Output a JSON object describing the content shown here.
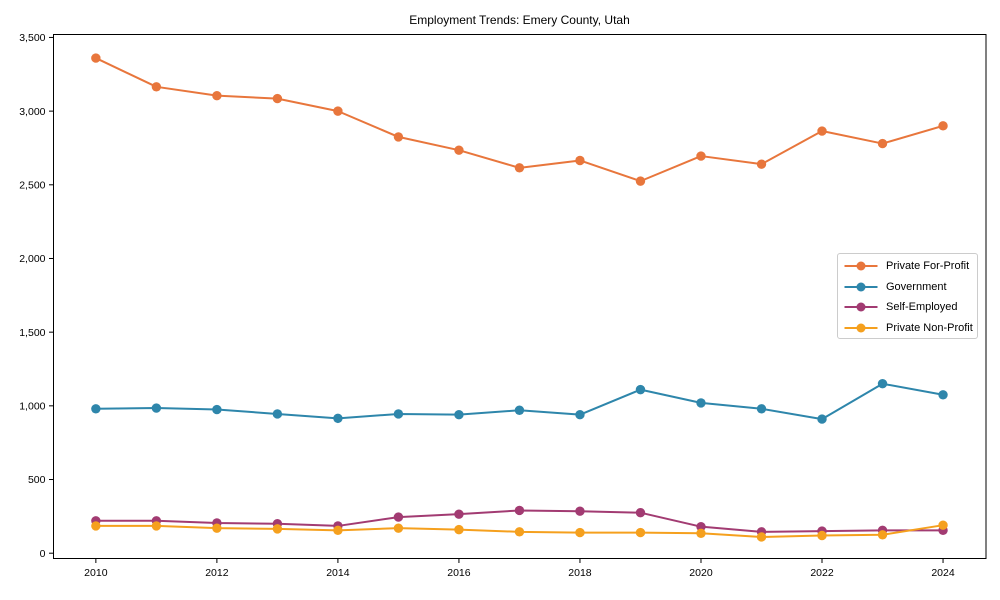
{
  "page": {
    "background": "#ffffff"
  },
  "chart_data": {
    "type": "line",
    "title": "Employment Trends: Emery County, Utah",
    "xlabel": "",
    "ylabel": "",
    "x": [
      2010,
      2011,
      2012,
      2013,
      2014,
      2015,
      2016,
      2017,
      2018,
      2019,
      2020,
      2021,
      2022,
      2023,
      2024
    ],
    "series": [
      {
        "name": "Private For-Profit",
        "color": "#E8763C",
        "values": [
          3360,
          3165,
          3105,
          3085,
          3000,
          2825,
          2735,
          2615,
          2665,
          2525,
          2695,
          2640,
          2865,
          2780,
          2900
        ]
      },
      {
        "name": "Government",
        "color": "#2E86AB",
        "values": [
          980,
          985,
          975,
          945,
          915,
          945,
          940,
          970,
          940,
          1110,
          1020,
          980,
          910,
          1150,
          1075
        ]
      },
      {
        "name": "Self-Employed",
        "color": "#A23B72",
        "values": [
          220,
          220,
          205,
          200,
          185,
          245,
          265,
          290,
          285,
          275,
          180,
          145,
          150,
          155,
          155
        ]
      },
      {
        "name": "Private Non-Profit",
        "color": "#F5A01E",
        "values": [
          185,
          185,
          170,
          165,
          155,
          170,
          160,
          145,
          140,
          140,
          135,
          110,
          120,
          125,
          190
        ]
      }
    ],
    "xticks": {
      "values": [
        2010,
        2012,
        2014,
        2016,
        2018,
        2020,
        2022,
        2024
      ],
      "labels": [
        "2010",
        "2012",
        "2014",
        "2016",
        "2018",
        "2020",
        "2022",
        "2024"
      ]
    },
    "yticks": {
      "values": [
        0,
        500,
        1000,
        1500,
        2000,
        2500,
        3000,
        3500
      ],
      "labels": [
        "0",
        "500",
        "1,000",
        "1,500",
        "2,000",
        "2,500",
        "3,000",
        "3,500"
      ]
    },
    "xlim": [
      2009.3,
      2024.71
    ],
    "ylim": [
      -36,
      3520
    ],
    "grid": false,
    "legend_position": "center-right",
    "axis_color": "#000000"
  }
}
